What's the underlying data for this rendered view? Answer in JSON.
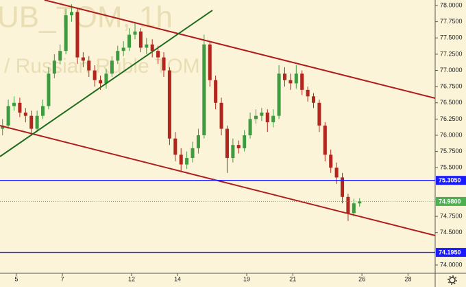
{
  "chart_data": {
    "type": "candlestick",
    "watermark": "UB_TOM, 1h",
    "watermark_subtitle": "/ Russian Ruble TOM",
    "up_color": "#3f9b3f",
    "down_color": "#b3261e",
    "xlim": [
      -0.71,
      18.18
    ],
    "xticks": [
      {
        "value": 0,
        "label": "5"
      },
      {
        "value": 2,
        "label": "7"
      },
      {
        "value": 5,
        "label": "12"
      },
      {
        "value": 7,
        "label": "14"
      },
      {
        "value": 10,
        "label": "19"
      },
      {
        "value": 12,
        "label": "21"
      },
      {
        "value": 15,
        "label": "26"
      },
      {
        "value": 17,
        "label": "28"
      }
    ],
    "ylim": [
      73.873,
      78.085
    ],
    "yticks": [
      {
        "value": 78,
        "label": "78.0000"
      },
      {
        "value": 77.75,
        "label": "77.7500"
      },
      {
        "value": 77.5,
        "label": "77.5000"
      },
      {
        "value": 77.25,
        "label": "77.2500"
      },
      {
        "value": 77,
        "label": "77.0000"
      },
      {
        "value": 76.75,
        "label": "76.7500"
      },
      {
        "value": 76.5,
        "label": "76.5000"
      },
      {
        "value": 76.25,
        "label": "76.2500"
      },
      {
        "value": 76,
        "label": "76.0000"
      },
      {
        "value": 75.75,
        "label": "75.7500"
      },
      {
        "value": 75.5,
        "label": "75.5000"
      },
      {
        "value": 74.75,
        "label": "74.7500"
      },
      {
        "value": 74.5,
        "label": "74.5000"
      },
      {
        "value": 74,
        "label": "74.0000"
      }
    ],
    "grid": false,
    "x": [
      -0.6,
      -0.35,
      -0.1,
      0.15,
      0.4,
      0.65,
      0.9,
      1.15,
      1.4,
      1.65,
      1.9,
      2.15,
      2.4,
      2.65,
      2.9,
      3.15,
      3.4,
      3.65,
      3.9,
      4.15,
      4.4,
      4.65,
      4.9,
      5.15,
      5.4,
      5.65,
      5.9,
      6.15,
      6.4,
      6.65,
      6.9,
      7.15,
      7.4,
      7.65,
      7.9,
      8.15,
      8.4,
      8.65,
      8.9,
      9.15,
      9.4,
      9.65,
      9.9,
      10.15,
      10.4,
      10.65,
      10.9,
      11.15,
      11.4,
      11.65,
      11.9,
      12.15,
      12.4,
      12.65,
      12.9,
      13.15,
      13.4,
      13.65,
      13.9,
      14.15,
      14.4,
      14.65,
      14.9
    ],
    "open": [
      76.1,
      76.15,
      76.45,
      76.5,
      76.35,
      76.3,
      76.1,
      76.3,
      76.45,
      76.95,
      77.15,
      77.3,
      77.85,
      77.9,
      77.2,
      77.15,
      77.0,
      76.85,
      76.8,
      76.95,
      77.15,
      77.3,
      77.35,
      77.55,
      77.6,
      77.35,
      77.4,
      77.3,
      77.2,
      77.0,
      75.95,
      75.7,
      75.55,
      75.65,
      75.8,
      76.0,
      77.4,
      76.85,
      76.5,
      76.1,
      75.65,
      75.85,
      75.8,
      76.0,
      76.25,
      76.3,
      76.35,
      76.2,
      76.3,
      76.95,
      76.85,
      76.8,
      76.95,
      76.7,
      76.6,
      76.5,
      76.15,
      75.7,
      75.5,
      75.35,
      75.05,
      74.8,
      74.95
    ],
    "high": [
      76.25,
      76.55,
      76.6,
      76.58,
      76.42,
      76.38,
      76.38,
      76.55,
      77.05,
      77.25,
      77.4,
      77.95,
      78.02,
      77.95,
      77.28,
      77.22,
      77.08,
      76.92,
      77.02,
      77.22,
      77.38,
      77.45,
      77.65,
      77.75,
      77.65,
      77.5,
      77.48,
      77.38,
      77.28,
      77.05,
      76.05,
      75.8,
      75.75,
      75.9,
      76.1,
      77.55,
      77.45,
      76.92,
      76.58,
      76.15,
      75.95,
      75.92,
      76.08,
      76.35,
      76.4,
      76.42,
      76.4,
      76.4,
      77.08,
      77.05,
      76.95,
      77.08,
      77.0,
      76.75,
      76.65,
      76.55,
      76.2,
      75.78,
      75.58,
      75.42,
      75.1,
      75.02,
      75.03
    ],
    "low": [
      76.0,
      76.1,
      76.38,
      76.28,
      76.2,
      76.02,
      76.05,
      76.25,
      76.4,
      76.88,
      77.1,
      77.25,
      77.75,
      77.1,
      77.05,
      76.9,
      76.75,
      76.7,
      76.72,
      76.9,
      77.1,
      77.22,
      77.3,
      77.48,
      77.28,
      77.25,
      77.2,
      77.1,
      76.9,
      75.85,
      75.6,
      75.45,
      75.48,
      75.58,
      75.72,
      75.95,
      76.75,
      76.4,
      76.0,
      75.42,
      75.58,
      75.72,
      75.75,
      75.95,
      76.18,
      76.22,
      76.05,
      76.12,
      76.25,
      76.75,
      76.7,
      76.72,
      76.62,
      76.52,
      76.42,
      76.05,
      75.6,
      75.42,
      75.25,
      74.95,
      74.68,
      74.75,
      74.9
    ],
    "close": [
      76.15,
      76.45,
      76.5,
      76.35,
      76.3,
      76.1,
      76.3,
      76.45,
      76.95,
      77.15,
      77.3,
      77.85,
      77.9,
      77.2,
      77.15,
      77.0,
      76.85,
      76.8,
      76.95,
      77.15,
      77.3,
      77.35,
      77.55,
      77.6,
      77.35,
      77.4,
      77.3,
      77.2,
      77.0,
      75.95,
      75.7,
      75.55,
      75.65,
      75.8,
      76.0,
      77.4,
      76.85,
      76.5,
      76.1,
      75.65,
      75.85,
      75.8,
      76.0,
      76.25,
      76.3,
      76.35,
      76.2,
      76.3,
      76.95,
      76.85,
      76.8,
      76.95,
      76.7,
      76.6,
      76.5,
      76.15,
      75.7,
      75.5,
      75.35,
      75.05,
      74.8,
      74.95,
      74.98
    ],
    "trendlines": [
      {
        "color": "#b01c1c",
        "x": [
          1.22,
          18.18
        ],
        "y": [
          78.085,
          76.571
        ]
      },
      {
        "color": "#b01c1c",
        "x": [
          -0.71,
          18.18
        ],
        "y": [
          76.148,
          74.455
        ]
      },
      {
        "color": "#1e6b1e",
        "x": [
          -0.71,
          8.51
        ],
        "y": [
          75.672,
          77.926
        ]
      }
    ],
    "levels": [
      {
        "value": 75.305,
        "label": "75.3050",
        "color": "#1a1aff"
      },
      {
        "value": 74.195,
        "label": "74.1950",
        "color": "#1a1aff"
      }
    ],
    "last_price": {
      "value": 74.98,
      "label": "74.9800",
      "color": "#4caf50"
    }
  }
}
